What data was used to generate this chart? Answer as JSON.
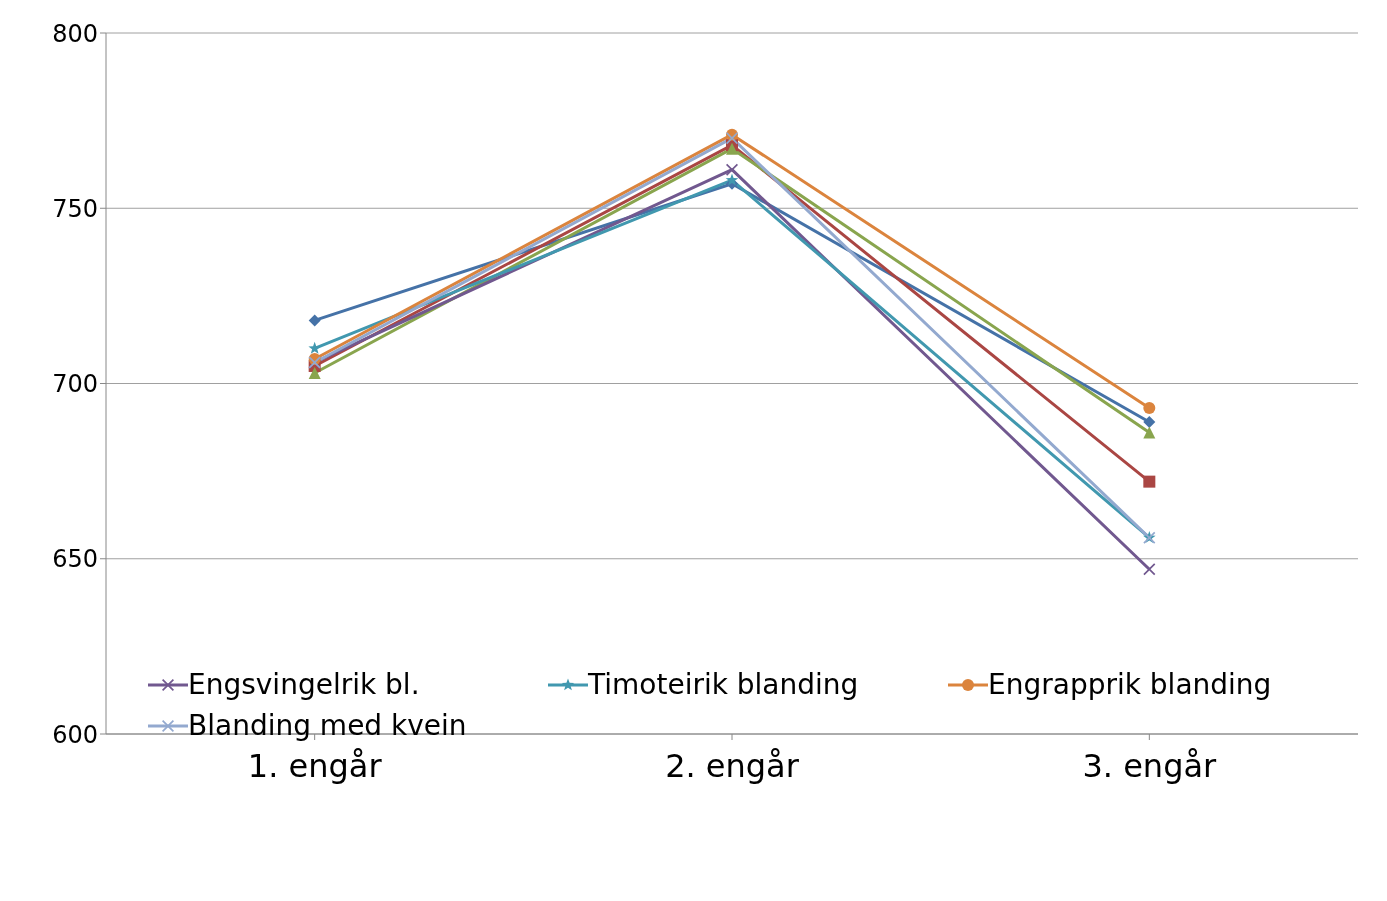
{
  "chart_data": {
    "type": "line",
    "categories": [
      "1. engår",
      "2. engår",
      "3. engår"
    ],
    "ylim": [
      600,
      800
    ],
    "yticks": [
      600,
      650,
      700,
      750,
      800
    ],
    "grid": "y",
    "legend": "bottom",
    "series": [
      {
        "color": "#4572a7",
        "marker": "diamond",
        "values": [
          718,
          757,
          689
        ]
      },
      {
        "color": "#aa4643",
        "marker": "square",
        "values": [
          705,
          768,
          672
        ]
      },
      {
        "color": "#89a54e",
        "marker": "triangle",
        "values": [
          703,
          767,
          686
        ]
      },
      {
        "name": "Engsvingelrik bl.",
        "color": "#71588f",
        "marker": "cross",
        "values": [
          706,
          761,
          647
        ]
      },
      {
        "name": "Timoteirik blanding",
        "color": "#4198af",
        "marker": "star",
        "values": [
          710,
          758,
          656
        ]
      },
      {
        "name": "Engrapprik blanding",
        "color": "#db843d",
        "marker": "circle",
        "values": [
          707,
          771,
          693
        ]
      },
      {
        "name": "Blanding med kvein",
        "color": "#93a9cf",
        "marker": "cross",
        "values": [
          706,
          770,
          656
        ]
      }
    ]
  }
}
